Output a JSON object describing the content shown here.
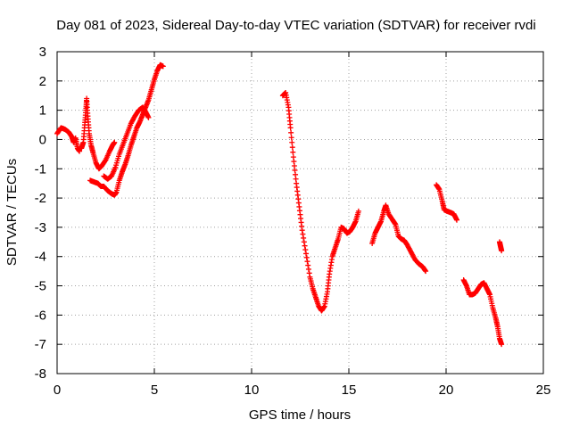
{
  "chart_data": {
    "type": "scatter",
    "title": "Day 081 of 2023, Sidereal Day-to-day VTEC variation (SDTVAR) for receiver rvdi",
    "xlabel": "GPS time / hours",
    "ylabel": "SDTVAR / TECUs",
    "xlim": [
      0,
      25
    ],
    "ylim": [
      -8,
      3
    ],
    "xticks": [
      0,
      5,
      10,
      15,
      20,
      25
    ],
    "yticks": [
      -8,
      -7,
      -6,
      -5,
      -4,
      -3,
      -2,
      -1,
      0,
      1,
      2,
      3
    ],
    "grid": true,
    "marker": "plus",
    "color": "#ff0000",
    "series": [
      {
        "segments": [
          [
            [
              0.0,
              0.2
            ],
            [
              0.2,
              0.4
            ],
            [
              0.4,
              0.35
            ],
            [
              0.6,
              0.25
            ],
            [
              0.75,
              0.1
            ],
            [
              0.85,
              -0.1
            ],
            [
              0.95,
              0.05
            ],
            [
              1.05,
              -0.3
            ],
            [
              1.15,
              -0.4
            ]
          ],
          [
            [
              1.25,
              -0.3
            ],
            [
              1.35,
              -0.1
            ],
            [
              1.42,
              0.5
            ],
            [
              1.48,
              1.0
            ],
            [
              1.52,
              1.4
            ],
            [
              1.58,
              0.8
            ],
            [
              1.65,
              0.2
            ],
            [
              1.75,
              -0.2
            ],
            [
              1.85,
              -0.45
            ],
            [
              2.0,
              -0.8
            ],
            [
              2.15,
              -1.0
            ],
            [
              2.3,
              -0.9
            ],
            [
              2.5,
              -0.7
            ],
            [
              2.7,
              -0.4
            ],
            [
              2.85,
              -0.2
            ],
            [
              2.95,
              -0.1
            ]
          ],
          [
            [
              1.7,
              -1.4
            ],
            [
              1.9,
              -1.45
            ],
            [
              2.1,
              -1.5
            ],
            [
              2.25,
              -1.6
            ],
            [
              2.4,
              -1.6
            ],
            [
              2.6,
              -1.75
            ],
            [
              2.8,
              -1.85
            ],
            [
              2.95,
              -1.9
            ],
            [
              3.05,
              -1.8
            ],
            [
              3.2,
              -1.4
            ],
            [
              3.35,
              -1.1
            ],
            [
              3.5,
              -0.85
            ],
            [
              3.65,
              -0.55
            ],
            [
              3.8,
              -0.2
            ],
            [
              3.95,
              0.1
            ],
            [
              4.1,
              0.4
            ],
            [
              4.25,
              0.6
            ],
            [
              4.4,
              0.85
            ],
            [
              4.55,
              1.1
            ],
            [
              4.7,
              1.35
            ],
            [
              4.85,
              1.7
            ],
            [
              5.0,
              2.05
            ],
            [
              5.15,
              2.35
            ],
            [
              5.3,
              2.55
            ],
            [
              5.45,
              2.5
            ]
          ],
          [
            [
              2.4,
              -1.25
            ],
            [
              2.6,
              -1.35
            ],
            [
              2.8,
              -1.25
            ],
            [
              3.0,
              -0.95
            ],
            [
              3.2,
              -0.5
            ],
            [
              3.4,
              -0.15
            ],
            [
              3.6,
              0.2
            ],
            [
              3.8,
              0.55
            ],
            [
              4.0,
              0.8
            ],
            [
              4.2,
              1.0
            ],
            [
              4.4,
              1.1
            ],
            [
              4.55,
              0.95
            ],
            [
              4.7,
              0.75
            ]
          ],
          [
            [
              11.6,
              1.5
            ],
            [
              11.75,
              1.6
            ],
            [
              11.9,
              1.1
            ],
            [
              12.0,
              0.4
            ],
            [
              12.15,
              -0.6
            ],
            [
              12.3,
              -1.5
            ],
            [
              12.45,
              -2.3
            ],
            [
              12.6,
              -3.1
            ],
            [
              12.8,
              -3.9
            ],
            [
              13.0,
              -4.7
            ],
            [
              13.15,
              -5.1
            ],
            [
              13.3,
              -5.4
            ],
            [
              13.45,
              -5.7
            ],
            [
              13.6,
              -5.85
            ],
            [
              13.75,
              -5.7
            ],
            [
              13.9,
              -5.2
            ],
            [
              14.0,
              -4.6
            ],
            [
              14.15,
              -4.0
            ],
            [
              14.3,
              -3.7
            ],
            [
              14.45,
              -3.4
            ],
            [
              14.6,
              -3.0
            ],
            [
              14.75,
              -3.05
            ],
            [
              14.9,
              -3.2
            ],
            [
              15.05,
              -3.15
            ],
            [
              15.2,
              -3.0
            ],
            [
              15.35,
              -2.8
            ],
            [
              15.5,
              -2.45
            ]
          ],
          [
            [
              16.2,
              -3.55
            ],
            [
              16.35,
              -3.2
            ],
            [
              16.5,
              -3.0
            ],
            [
              16.65,
              -2.8
            ],
            [
              16.8,
              -2.45
            ],
            [
              16.9,
              -2.25
            ],
            [
              17.05,
              -2.55
            ],
            [
              17.25,
              -2.75
            ],
            [
              17.4,
              -2.9
            ],
            [
              17.55,
              -3.3
            ],
            [
              17.7,
              -3.4
            ],
            [
              17.85,
              -3.45
            ],
            [
              18.0,
              -3.6
            ],
            [
              18.2,
              -3.85
            ],
            [
              18.4,
              -4.1
            ],
            [
              18.6,
              -4.25
            ],
            [
              18.8,
              -4.35
            ],
            [
              18.95,
              -4.5
            ]
          ],
          [
            [
              19.5,
              -1.55
            ],
            [
              19.65,
              -1.7
            ],
            [
              19.8,
              -2.1
            ],
            [
              19.9,
              -2.4
            ],
            [
              20.05,
              -2.45
            ],
            [
              20.25,
              -2.5
            ],
            [
              20.4,
              -2.55
            ],
            [
              20.55,
              -2.75
            ]
          ],
          [
            [
              20.9,
              -4.8
            ],
            [
              21.05,
              -5.0
            ],
            [
              21.2,
              -5.3
            ],
            [
              21.35,
              -5.3
            ],
            [
              21.5,
              -5.25
            ],
            [
              21.65,
              -5.1
            ],
            [
              21.8,
              -4.95
            ],
            [
              21.95,
              -4.9
            ],
            [
              22.1,
              -5.1
            ],
            [
              22.25,
              -5.3
            ],
            [
              22.4,
              -5.75
            ],
            [
              22.55,
              -6.1
            ],
            [
              22.65,
              -6.4
            ],
            [
              22.75,
              -6.8
            ],
            [
              22.85,
              -7.0
            ]
          ],
          [
            [
              22.75,
              -3.5
            ],
            [
              22.8,
              -3.65
            ],
            [
              22.85,
              -3.8
            ]
          ]
        ]
      }
    ]
  }
}
